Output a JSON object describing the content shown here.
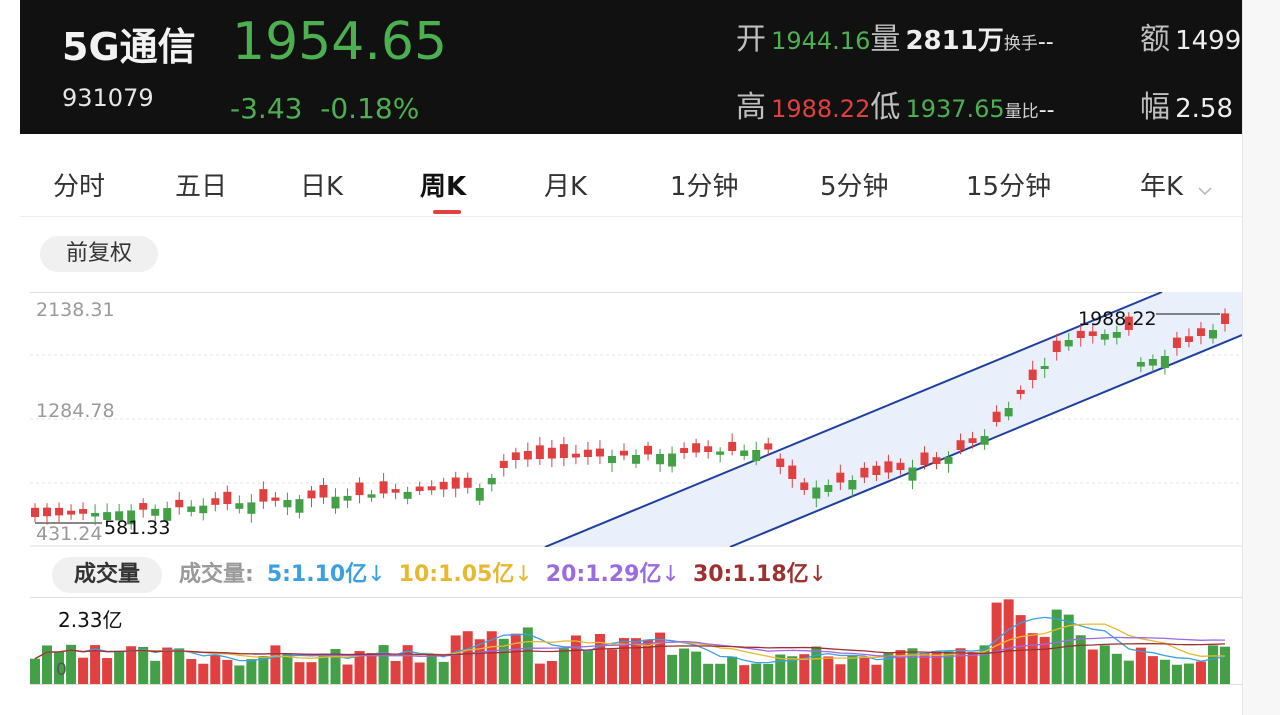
{
  "header": {
    "name": "5G通信",
    "code": "931079",
    "price": "1954.65",
    "change": "-3.43",
    "change_pct": "-0.18%",
    "open_label": "开",
    "open_value": "1944.16",
    "volume_label": "量",
    "volume_value": "2811万",
    "turnover_label": "换手",
    "turnover_value": "--",
    "amount_label": "额",
    "amount_value": "1499",
    "high_label": "高",
    "high_value": "1988.22",
    "low_label": "低",
    "low_value": "1937.65",
    "volratio_label": "量比",
    "volratio_value": "--",
    "amp_label": "幅",
    "amp_value": "2.58"
  },
  "tabs": [
    "分时",
    "五日",
    "日K",
    "周K",
    "月K",
    "1分钟",
    "5分钟",
    "15分钟",
    "年K"
  ],
  "active_tab": "周K",
  "adjust_label": "前复权",
  "chart": {
    "y_top": "2138.31",
    "y_mid": "1284.78",
    "y_low": "431.24",
    "min_annot": "581.33",
    "max_annot": "1988.22"
  },
  "volume": {
    "title": "成交量",
    "prefix": "成交量:",
    "ma5": "5:1.10亿",
    "ma10": "10:1.05亿",
    "ma20": "20:1.29亿",
    "ma30": "30:1.18亿",
    "max_label": "2.33亿",
    "zero_label": "0"
  },
  "colors": {
    "up": "#e04040",
    "down": "#43a047",
    "channel": "#1f3fa0",
    "ma5": "#3aa0e0",
    "ma10": "#e8b830",
    "ma20": "#9b6be0",
    "ma30": "#a03030"
  },
  "icons": {
    "dropdown": "chevron-down-icon"
  }
}
